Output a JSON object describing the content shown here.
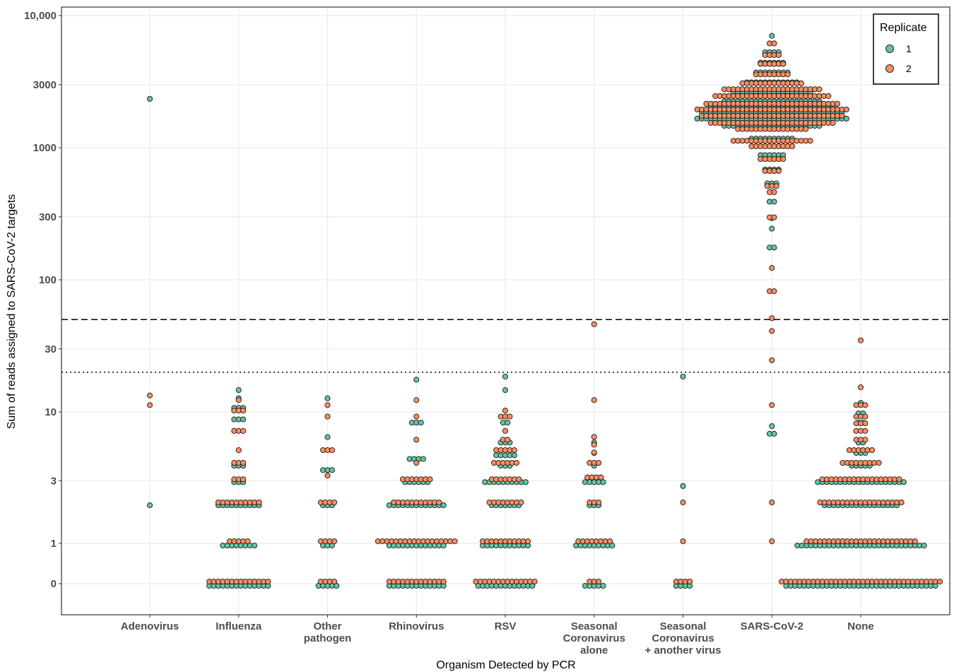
{
  "chart_data": {
    "type": "scatter",
    "subtype": "beeswarm",
    "title": "",
    "xlabel": "Organism Detected by PCR",
    "ylabel": "Sum of reads assigned to SARS-CoV-2 targets",
    "y_scale": "pseudo-log",
    "y_ticks": [
      0,
      1,
      3,
      10,
      30,
      100,
      300,
      1000,
      3000,
      10000
    ],
    "y_tick_labels": [
      "0",
      "1",
      "3",
      "10",
      "30",
      "100",
      "300",
      "1000",
      "3000",
      "10,000"
    ],
    "ylim": [
      0,
      10000
    ],
    "grid": true,
    "legend": {
      "title": "Replicate",
      "placement": "top-right",
      "entries": [
        "1",
        "2"
      ]
    },
    "reference_lines": [
      {
        "y": 50,
        "style": "dashed"
      },
      {
        "y": 20,
        "style": "dotted"
      }
    ],
    "series_colors": {
      "1": "#66c2a5",
      "2": "#fc8d62"
    },
    "categories": [
      {
        "label": [
          "Adenovirus"
        ],
        "r1": [
          [
            2400,
            1
          ],
          [
            2,
            1
          ]
        ],
        "r2": [
          [
            13,
            1
          ],
          [
            11,
            1
          ]
        ]
      },
      {
        "label": [
          "Influenza"
        ],
        "r1": [
          [
            0,
            14
          ],
          [
            1,
            8
          ],
          [
            2,
            10
          ],
          [
            3,
            3
          ],
          [
            4,
            3
          ],
          [
            9,
            3
          ],
          [
            11,
            3
          ],
          [
            13,
            1
          ],
          [
            15,
            1
          ]
        ],
        "r2": [
          [
            0,
            14
          ],
          [
            1,
            5
          ],
          [
            2,
            10
          ],
          [
            3,
            3
          ],
          [
            4,
            3
          ],
          [
            5,
            1
          ],
          [
            7,
            3
          ],
          [
            10,
            3
          ],
          [
            12,
            1
          ]
        ]
      },
      {
        "label": [
          "Other",
          "pathogen"
        ],
        "r1": [
          [
            0,
            5
          ],
          [
            1,
            3
          ],
          [
            2,
            3
          ],
          [
            3.7,
            3
          ],
          [
            6.6,
            1
          ],
          [
            13,
            1
          ]
        ],
        "r2": [
          [
            0,
            4
          ],
          [
            1,
            4
          ],
          [
            2,
            4
          ],
          [
            3.2,
            1
          ],
          [
            5,
            3
          ],
          [
            9,
            1
          ],
          [
            11,
            1
          ]
        ]
      },
      {
        "label": [
          "Rhinovirus"
        ],
        "r1": [
          [
            0,
            13
          ],
          [
            1,
            13
          ],
          [
            2,
            13
          ],
          [
            3,
            6
          ],
          [
            4.5,
            4
          ],
          [
            8.5,
            3
          ],
          [
            18,
            1
          ]
        ],
        "r2": [
          [
            0,
            13
          ],
          [
            1,
            18
          ],
          [
            2,
            11
          ],
          [
            3,
            7
          ],
          [
            4,
            1
          ],
          [
            6,
            1
          ],
          [
            9,
            1
          ],
          [
            12,
            1
          ]
        ]
      },
      {
        "label": [
          "RSV"
        ],
        "r1": [
          [
            0,
            13
          ],
          [
            1,
            11
          ],
          [
            2,
            7
          ],
          [
            3,
            10
          ],
          [
            4,
            3
          ],
          [
            4.8,
            5
          ],
          [
            6,
            3
          ],
          [
            8.5,
            2
          ],
          [
            15,
            1
          ],
          [
            19,
            1
          ]
        ],
        "r2": [
          [
            0,
            14
          ],
          [
            1,
            11
          ],
          [
            2,
            8
          ],
          [
            3,
            7
          ],
          [
            4,
            6
          ],
          [
            5,
            5
          ],
          [
            6,
            2
          ],
          [
            7,
            1
          ],
          [
            9,
            3
          ],
          [
            10,
            1
          ]
        ]
      },
      {
        "label": [
          "Seasonal",
          "Coronavirus",
          "alone"
        ],
        "r1": [
          [
            0,
            5
          ],
          [
            1,
            9
          ],
          [
            2,
            3
          ],
          [
            3,
            5
          ],
          [
            4,
            1
          ],
          [
            5,
            1
          ],
          [
            6,
            1
          ]
        ],
        "r2": [
          [
            0,
            3
          ],
          [
            1,
            8
          ],
          [
            2,
            3
          ],
          [
            3.1,
            4
          ],
          [
            4,
            3
          ],
          [
            4.8,
            1
          ],
          [
            5.5,
            1
          ],
          [
            6.3,
            1
          ],
          [
            12,
            1
          ],
          [
            45,
            1
          ]
        ]
      },
      {
        "label": [
          "Seasonal",
          "Coronavirus",
          "+ another virus"
        ],
        "r1": [
          [
            0,
            4
          ],
          [
            2.8,
            1
          ],
          [
            19,
            1
          ]
        ],
        "r2": [
          [
            0,
            4
          ],
          [
            2,
            1
          ],
          [
            1,
            1
          ]
        ]
      },
      {
        "label": [
          "SARS-CoV-2"
        ],
        "r1": [
          [
            1700,
            34
          ],
          [
            1900,
            32
          ],
          [
            2100,
            28
          ],
          [
            2300,
            22
          ],
          [
            1500,
            22
          ],
          [
            2700,
            18
          ],
          [
            3200,
            12
          ],
          [
            3800,
            8
          ],
          [
            4500,
            6
          ],
          [
            5400,
            4
          ],
          [
            7200,
            1
          ],
          [
            1200,
            10
          ],
          [
            900,
            6
          ],
          [
            700,
            4
          ],
          [
            550,
            3
          ],
          [
            400,
            2
          ],
          [
            300,
            1
          ],
          [
            250,
            1
          ],
          [
            180,
            2
          ],
          [
            7,
            2
          ],
          [
            8,
            1
          ]
        ],
        "r2": [
          [
            1700,
            32
          ],
          [
            1900,
            34
          ],
          [
            1500,
            28
          ],
          [
            2100,
            30
          ],
          [
            2400,
            26
          ],
          [
            2700,
            22
          ],
          [
            1350,
            16
          ],
          [
            1100,
            18
          ],
          [
            3000,
            14
          ],
          [
            3500,
            8
          ],
          [
            4200,
            6
          ],
          [
            4900,
            4
          ],
          [
            6000,
            2
          ],
          [
            1000,
            10
          ],
          [
            800,
            6
          ],
          [
            650,
            4
          ],
          [
            500,
            3
          ],
          [
            450,
            2
          ],
          [
            290,
            2
          ],
          [
            120,
            1
          ],
          [
            80,
            2
          ],
          [
            50,
            1
          ],
          [
            40,
            1
          ],
          [
            24,
            1
          ],
          [
            11,
            1
          ],
          [
            2,
            1
          ],
          [
            1,
            1
          ]
        ]
      },
      {
        "label": [
          "None"
        ],
        "r1": [
          [
            0,
            34
          ],
          [
            1,
            29
          ],
          [
            2,
            17
          ],
          [
            3,
            20
          ],
          [
            4,
            5
          ],
          [
            5,
            3
          ],
          [
            6,
            2
          ],
          [
            8.5,
            2
          ],
          [
            10,
            2
          ],
          [
            12,
            1
          ]
        ],
        "r2": [
          [
            0,
            36
          ],
          [
            1,
            25
          ],
          [
            2,
            19
          ],
          [
            3,
            18
          ],
          [
            4,
            9
          ],
          [
            5,
            6
          ],
          [
            6,
            3
          ],
          [
            7,
            3
          ],
          [
            8,
            3
          ],
          [
            9,
            3
          ],
          [
            11,
            3
          ],
          [
            15,
            1
          ],
          [
            34,
            1
          ]
        ]
      }
    ]
  }
}
